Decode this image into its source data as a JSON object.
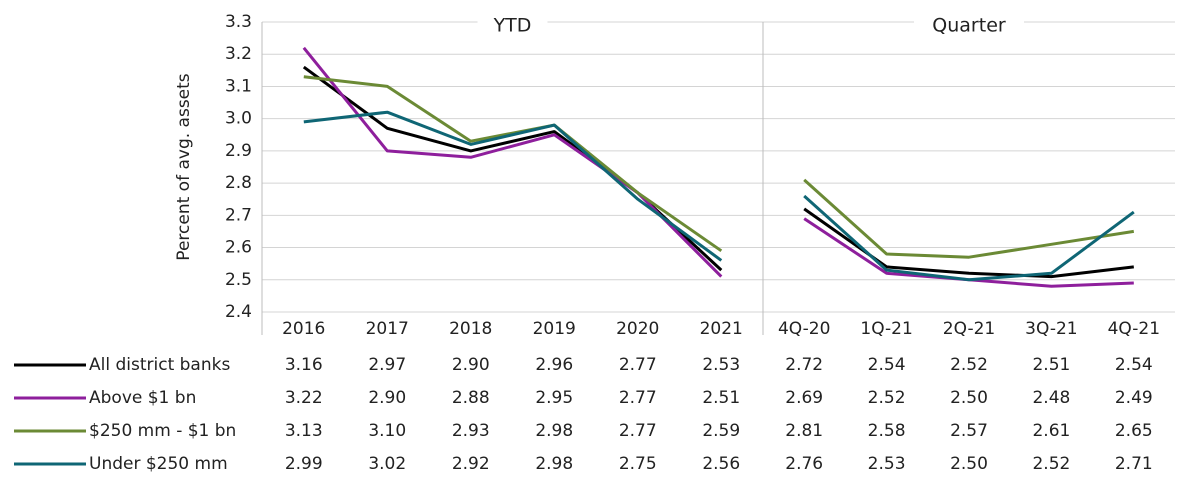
{
  "chart_data": [
    {
      "type": "line",
      "title": "YTD",
      "ylabel": "Percent of avg. assets",
      "categories": [
        "2016",
        "2017",
        "2018",
        "2019",
        "2020",
        "2021"
      ],
      "ylim": [
        2.4,
        3.3
      ],
      "yticks": [
        2.4,
        2.5,
        2.6,
        2.7,
        2.8,
        2.9,
        {
          "value": 3,
          "label": "3.0"
        },
        3.1,
        3.2,
        3.3
      ],
      "grid": true,
      "series": [
        {
          "name": "All district banks",
          "color": "#000000",
          "values": [
            3.16,
            2.97,
            2.9,
            2.96,
            2.77,
            2.53
          ],
          "value_labels": [
            "3.16",
            "2.97",
            "2.90",
            "2.96",
            "2.77",
            "2.53"
          ]
        },
        {
          "name": "Above $1 bn",
          "color": "#8e1f9c",
          "values": [
            3.22,
            2.9,
            2.88,
            2.95,
            2.77,
            2.51
          ],
          "value_labels": [
            "3.22",
            "2.90",
            "2.88",
            "2.95",
            "2.77",
            "2.51"
          ]
        },
        {
          "name": "$250 mm - $1 bn",
          "color": "#6b8a35",
          "values": [
            3.13,
            3.1,
            2.93,
            2.98,
            2.77,
            2.59
          ],
          "value_labels": [
            "3.13",
            "3.10",
            "2.93",
            "2.98",
            "2.77",
            "2.59"
          ]
        },
        {
          "name": "Under $250 mm",
          "color": "#0f6675",
          "values": [
            2.99,
            3.02,
            2.92,
            2.98,
            2.75,
            2.56
          ],
          "value_labels": [
            "2.99",
            "3.02",
            "2.92",
            "2.98",
            "2.75",
            "2.56"
          ]
        }
      ]
    },
    {
      "type": "line",
      "title": "Quarter",
      "categories": [
        "4Q-20",
        "1Q-21",
        "2Q-21",
        "3Q-21",
        "4Q-21"
      ],
      "series": [
        {
          "color": "#000000",
          "values": [
            2.72,
            2.54,
            2.52,
            2.51,
            2.54
          ],
          "value_labels": [
            "2.72",
            "2.54",
            "2.52",
            "2.51",
            "2.54"
          ]
        },
        {
          "color": "#8e1f9c",
          "values": [
            2.69,
            2.52,
            2.5,
            2.48,
            2.49
          ],
          "value_labels": [
            "2.69",
            "2.52",
            "2.50",
            "2.48",
            "2.49"
          ]
        },
        {
          "color": "#6b8a35",
          "values": [
            2.81,
            2.58,
            2.57,
            2.61,
            2.65
          ],
          "value_labels": [
            "2.81",
            "2.58",
            "2.57",
            "2.61",
            "2.65"
          ]
        },
        {
          "color": "#0f6675",
          "values": [
            2.76,
            2.53,
            2.5,
            2.52,
            2.71
          ],
          "value_labels": [
            "2.76",
            "2.53",
            "2.50",
            "2.52",
            "2.71"
          ]
        }
      ]
    }
  ]
}
